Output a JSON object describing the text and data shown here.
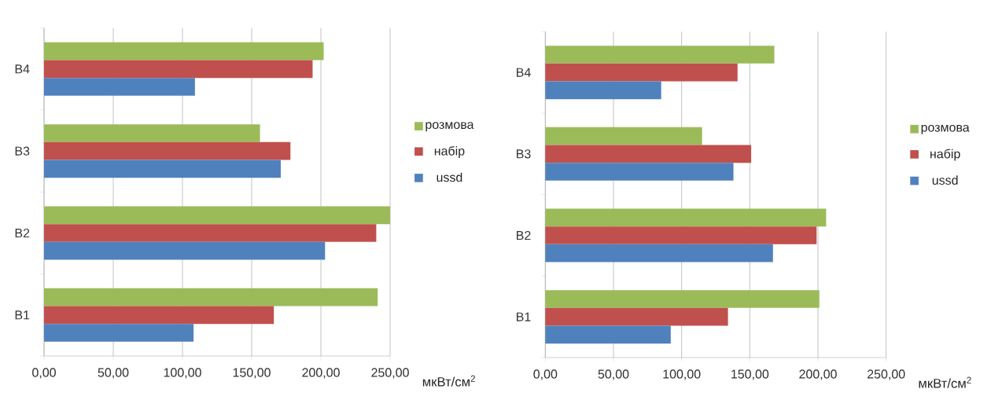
{
  "chart_data": [
    {
      "type": "bar",
      "orientation": "horizontal",
      "categories": [
        "B4",
        "B3",
        "B2",
        "B1"
      ],
      "xlabel": "мкВт/см$^{2}$",
      "xlim": [
        0,
        250
      ],
      "xticks": [
        {
          "value": 0,
          "label": "0,00"
        },
        {
          "value": 50,
          "label": "50,00"
        },
        {
          "value": 100,
          "label": "100,00"
        },
        {
          "value": 150,
          "label": "150,00"
        },
        {
          "value": 200,
          "label": "200,00"
        },
        {
          "value": 250,
          "label": "250,00"
        }
      ],
      "grid": "x",
      "legend": "right",
      "series": [
        {
          "name": "розмова",
          "color": "#9bbb59",
          "values": [
            202,
            156,
            250,
            241
          ]
        },
        {
          "name": "набір",
          "color": "#c0504d",
          "values": [
            194,
            178,
            240,
            166
          ]
        },
        {
          "name": "ussd",
          "color": "#4f81bd",
          "values": [
            109,
            171,
            203,
            108
          ]
        }
      ]
    },
    {
      "type": "bar",
      "orientation": "horizontal",
      "categories": [
        "B4",
        "B3",
        "B2",
        "B1"
      ],
      "xlabel": "мкВт/см$^{2}$",
      "xlim": [
        0,
        250
      ],
      "xticks": [
        {
          "value": 0,
          "label": "0,00"
        },
        {
          "value": 50,
          "label": "50,00"
        },
        {
          "value": 100,
          "label": "100,00"
        },
        {
          "value": 150,
          "label": "150,00"
        },
        {
          "value": 200,
          "label": "200,00"
        },
        {
          "value": 250,
          "label": "250,00"
        }
      ],
      "grid": "x",
      "legend": "right",
      "series": [
        {
          "name": "розмова",
          "color": "#9bbb59",
          "values": [
            168,
            115,
            206,
            201
          ]
        },
        {
          "name": "набір",
          "color": "#c0504d",
          "values": [
            141,
            151,
            199,
            134
          ]
        },
        {
          "name": "ussd",
          "color": "#4f81bd",
          "values": [
            85,
            138,
            167,
            92
          ]
        }
      ]
    }
  ]
}
